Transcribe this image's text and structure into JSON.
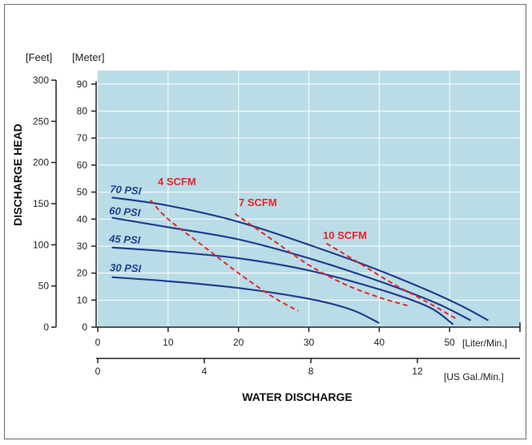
{
  "chart_data": {
    "type": "line",
    "plot_background": "#b9dce6",
    "grid": true,
    "ylabel": "DISCHARGE HEAD",
    "xlabel": "WATER DISCHARGE",
    "y_units": {
      "feet": "[Feet]",
      "meter": "[Meter]"
    },
    "x_units": {
      "liter": "[Liter/Min.]",
      "gallon": "[US Gal./Min.]"
    },
    "xlim_liter": [
      0,
      60
    ],
    "ylim_meter": [
      0,
      95
    ],
    "x_ticks_liter": [
      "0",
      "10",
      "20",
      "30",
      "40",
      "50"
    ],
    "x_ticks_gallon": [
      "0",
      "4",
      "8",
      "12"
    ],
    "y_ticks_meter": [
      "0",
      "10",
      "20",
      "30",
      "40",
      "50",
      "60",
      "70",
      "80",
      "90"
    ],
    "y_ticks_feet": [
      "0",
      "50",
      "100",
      "150",
      "200",
      "250",
      "300"
    ],
    "series": [
      {
        "name": "70 PSI",
        "style": "solid",
        "color": "#1f3f91",
        "x": [
          2,
          10,
          20,
          30,
          40,
          50,
          55.5
        ],
        "y": [
          48,
          45,
          39,
          30.5,
          21,
          10,
          2.5
        ]
      },
      {
        "name": "60 PSI",
        "style": "solid",
        "color": "#1f3f91",
        "x": [
          2,
          10,
          20,
          30,
          40,
          48,
          53
        ],
        "y": [
          40.5,
          37,
          32.5,
          25.5,
          17,
          9,
          2.5
        ]
      },
      {
        "name": "45 PSI",
        "style": "solid",
        "color": "#1f3f91",
        "x": [
          2,
          10,
          20,
          30,
          40,
          47,
          50.5
        ],
        "y": [
          29.5,
          28,
          25.5,
          21,
          14,
          7.5,
          1
        ]
      },
      {
        "name": "30 PSI",
        "style": "solid",
        "color": "#1f3f91",
        "x": [
          2,
          10,
          20,
          30,
          36,
          40
        ],
        "y": [
          18.5,
          17,
          14.5,
          10.5,
          6.5,
          1.5
        ]
      },
      {
        "name": "4 SCFM",
        "style": "dashed",
        "color": "#e8242a",
        "x": [
          7.5,
          10,
          15,
          20,
          25,
          28.5
        ],
        "y": [
          47,
          40,
          30,
          20,
          11,
          6
        ]
      },
      {
        "name": "7 SCFM",
        "style": "dashed",
        "color": "#e8242a",
        "x": [
          19.5,
          25,
          30,
          35,
          40,
          44
        ],
        "y": [
          42,
          32,
          23,
          16,
          11,
          8
        ]
      },
      {
        "name": "10 SCFM",
        "style": "dashed",
        "color": "#e8242a",
        "x": [
          32.5,
          37,
          42,
          47,
          51
        ],
        "y": [
          31,
          24,
          16,
          9,
          3
        ]
      }
    ],
    "series_labels": [
      {
        "text": "70 PSI",
        "color": "#1f3f91"
      },
      {
        "text": "60 PSI",
        "color": "#1f3f91"
      },
      {
        "text": "45 PSI",
        "color": "#1f3f91"
      },
      {
        "text": "30 PSI",
        "color": "#1f3f91"
      },
      {
        "text": "4 SCFM",
        "color": "#e8242a"
      },
      {
        "text": "7 SCFM",
        "color": "#e8242a"
      },
      {
        "text": "10 SCFM",
        "color": "#e8242a"
      }
    ]
  }
}
